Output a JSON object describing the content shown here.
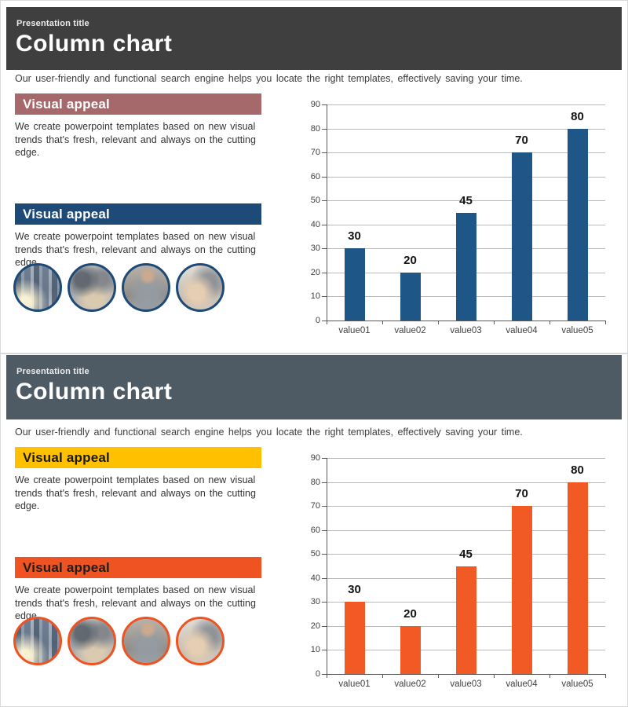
{
  "page": {
    "background": "#ffffff"
  },
  "slides": [
    {
      "name": "column-chart-slide-blue",
      "header": {
        "kicker": "Presentation title",
        "title": "Column chart"
      },
      "subtitle": "Our user-friendly and functional search engine helps you locate the right templates, effectively saving your time.",
      "boxes": [
        {
          "heading": "Visual appeal",
          "body": "We create powerpoint templates based on new visual trends that's fresh, relevant and always on the cutting edge."
        },
        {
          "heading": "Visual appeal",
          "body": "We create powerpoint templates based on new visual trends that's fresh, relevant and always on the cutting edge."
        }
      ],
      "photos": [
        "city buildings",
        "business meeting",
        "woman on phone",
        "applauding hands"
      ],
      "theme": {
        "header_bg": "#3F3F3F",
        "header_kicker": "#EDEDED",
        "header_title": "#FFFFFF",
        "box1_bg": "#A5696C",
        "box1_text": "#FFFFFF",
        "box2_bg": "#1E4A77",
        "box2_text": "#FFFFFF",
        "circle_border": "#1E4A77",
        "bar_color": "#1F5688"
      }
    },
    {
      "name": "column-chart-slide-orange",
      "header": {
        "kicker": "Presentation title",
        "title": "Column chart"
      },
      "subtitle": "Our user-friendly and functional search engine helps you locate the right templates, effectively saving your time.",
      "boxes": [
        {
          "heading": "Visual appeal",
          "body": "We create powerpoint templates based on new visual trends that's fresh, relevant and always on the cutting edge."
        },
        {
          "heading": "Visual appeal",
          "body": "We create powerpoint templates based on new visual trends that's fresh, relevant and always on the cutting edge."
        }
      ],
      "photos": [
        "city buildings",
        "business meeting",
        "woman on phone",
        "applauding hands"
      ],
      "theme": {
        "header_bg": "#4E5A64",
        "header_kicker": "#EDEDED",
        "header_title": "#FFFFFF",
        "box1_bg": "#FFC000",
        "box1_text": "#1A1A1A",
        "box2_bg": "#EE5321",
        "box2_text": "#1F1F1F",
        "circle_border": "#EE5321",
        "bar_color": "#F15A24"
      }
    }
  ],
  "chart_data": [
    {
      "type": "bar",
      "categories": [
        "value01",
        "value02",
        "value03",
        "value04",
        "value05"
      ],
      "values": [
        30,
        20,
        45,
        70,
        80
      ],
      "title": "",
      "xlabel": "",
      "ylabel": "",
      "ylim": [
        0,
        90
      ],
      "ytick_step": 10,
      "grid": true,
      "legend": false,
      "bar_color": "#1F5688",
      "value_labels_shown": true
    },
    {
      "type": "bar",
      "categories": [
        "value01",
        "value02",
        "value03",
        "value04",
        "value05"
      ],
      "values": [
        30,
        20,
        45,
        70,
        80
      ],
      "title": "",
      "xlabel": "",
      "ylabel": "",
      "ylim": [
        0,
        90
      ],
      "ytick_step": 10,
      "grid": true,
      "legend": false,
      "bar_color": "#F15A24",
      "value_labels_shown": true
    }
  ]
}
